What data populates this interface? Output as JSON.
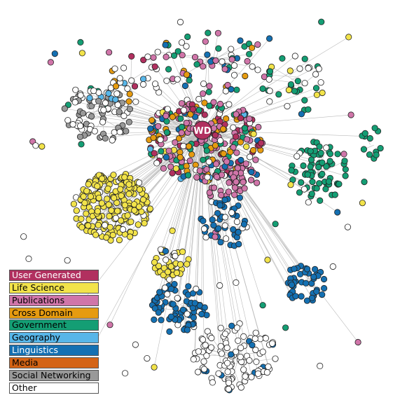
{
  "hub_label": "WD",
  "legend": [
    {
      "label": "User Generated",
      "color": "#b1305f",
      "text_color": "#ffffff",
      "key": "user_generated"
    },
    {
      "label": "Life Science",
      "color": "#f2e34a",
      "text_color": "#000000",
      "key": "life_science"
    },
    {
      "label": "Publications",
      "color": "#d075a9",
      "text_color": "#000000",
      "key": "publications"
    },
    {
      "label": "Cross Domain",
      "color": "#e69b10",
      "text_color": "#000000",
      "key": "cross_domain"
    },
    {
      "label": "Government",
      "color": "#149e74",
      "text_color": "#000000",
      "key": "government"
    },
    {
      "label": "Geography",
      "color": "#58b6e8",
      "text_color": "#000000",
      "key": "geography"
    },
    {
      "label": "Linguistics",
      "color": "#1470b2",
      "text_color": "#ffffff",
      "key": "linguistics"
    },
    {
      "label": "Media",
      "color": "#d46315",
      "text_color": "#000000",
      "key": "media"
    },
    {
      "label": "Social Networking",
      "color": "#999999",
      "text_color": "#000000",
      "key": "social_networking"
    },
    {
      "label": "Other",
      "color": "#ffffff",
      "text_color": "#000000",
      "key": "other"
    }
  ],
  "edge_color": "#bbbbbb",
  "node_stroke": "#222222"
}
